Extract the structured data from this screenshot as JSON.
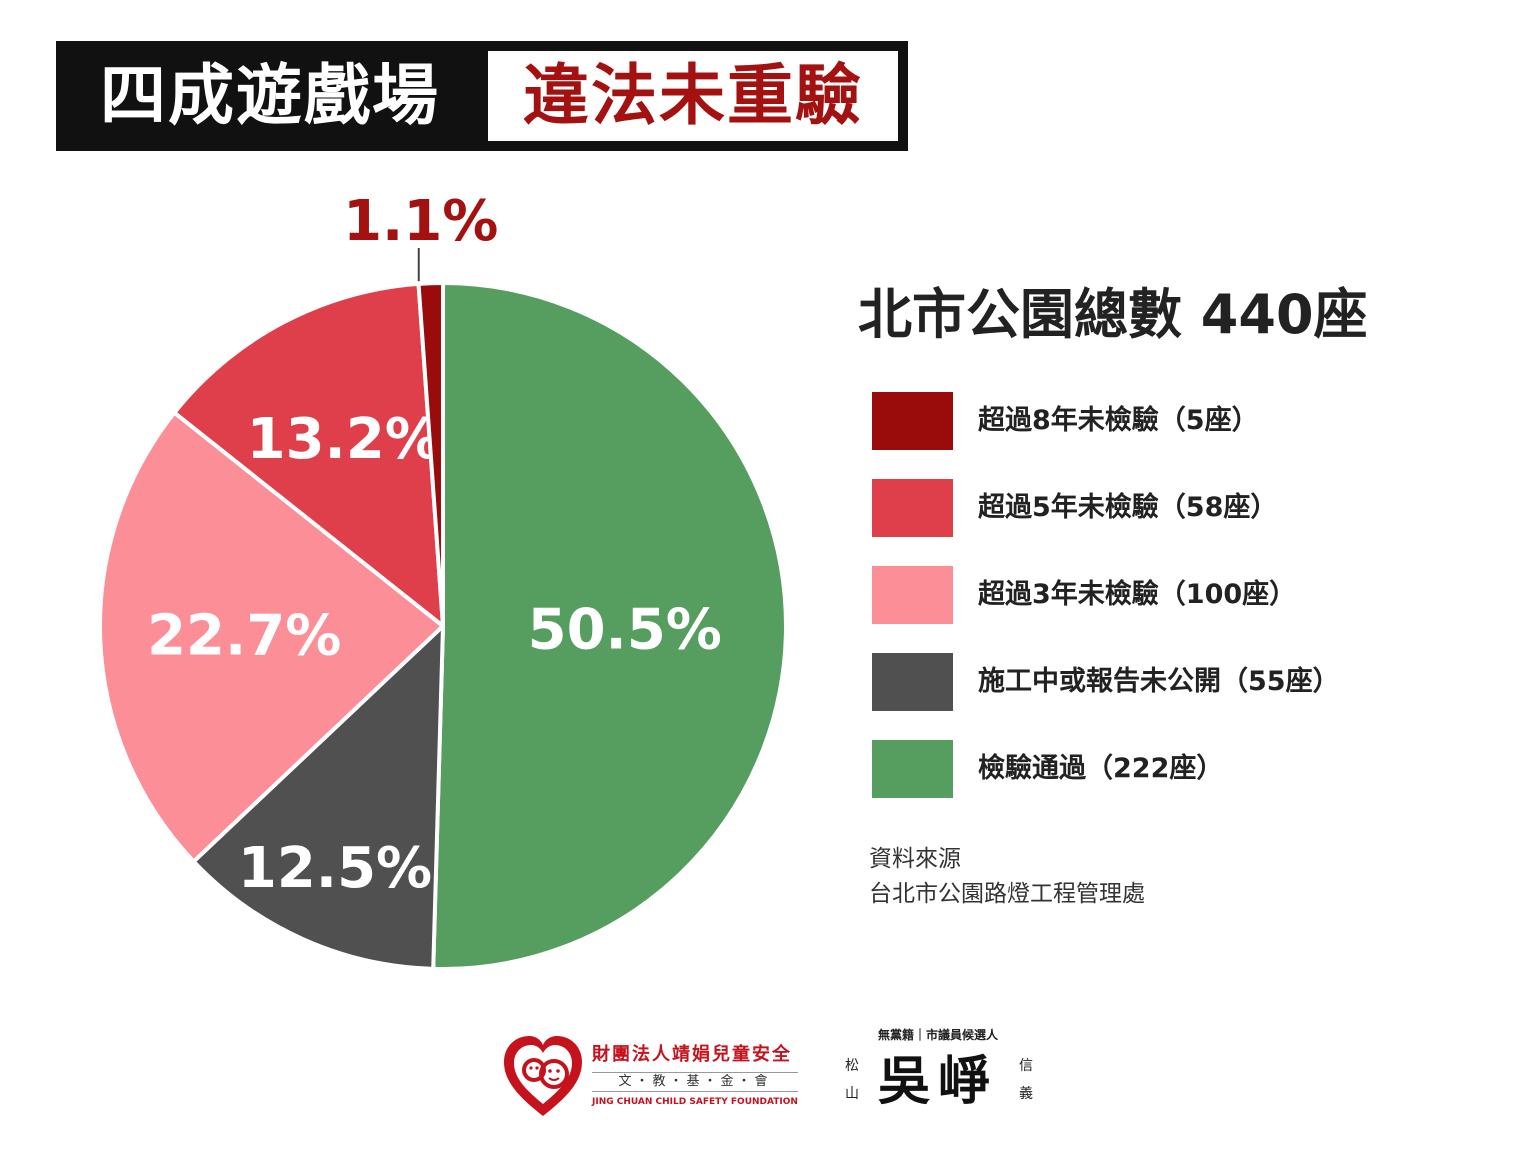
{
  "header": {
    "title_left": "四成遊戲場",
    "title_right": "違法未重驗"
  },
  "chart_data": {
    "type": "pie",
    "title": "北市公園總數 440座",
    "slices": [
      {
        "name": "檢驗通過（222座）",
        "value": 222,
        "percent_label": "50.5%",
        "color": "#559e5f",
        "label_color": "#ffffff"
      },
      {
        "name": "施工中或報告未公開（55座）",
        "value": 55,
        "percent_label": "12.5%",
        "color": "#505050",
        "label_color": "#ffffff"
      },
      {
        "name": "超過3年未檢驗（100座）",
        "value": 100,
        "percent_label": "22.7%",
        "color": "#fc8e97",
        "label_color": "#ffffff"
      },
      {
        "name": "超過5年未檢驗（58座）",
        "value": 58,
        "percent_label": "13.2%",
        "color": "#de3f4a",
        "label_color": "#ffffff"
      },
      {
        "name": "超過8年未檢驗（5座）",
        "value": 5,
        "percent_label": "1.1%",
        "color": "#9a0b0b",
        "label_color": "#a41111"
      }
    ],
    "legend_order": [
      "超過8年未檢驗（5座）",
      "超過5年未檢驗（58座）",
      "超過3年未檢驗（100座）",
      "施工中或報告未公開（55座）",
      "檢驗通過（222座）"
    ],
    "legend_placement": "right"
  },
  "legend": {
    "items": [
      {
        "label": "超過8年未檢驗（5座）",
        "color": "#9a0b0b"
      },
      {
        "label": "超過5年未檢驗（58座）",
        "color": "#de3f4a"
      },
      {
        "label": "超過3年未檢驗（100座）",
        "color": "#fc8e97"
      },
      {
        "label": "施工中或報告未公開（55座）",
        "color": "#505050"
      },
      {
        "label": "檢驗通過（222座）",
        "color": "#559e5f"
      }
    ]
  },
  "source": {
    "label": "資料來源",
    "text": "台北市公園路燈工程管理處"
  },
  "footer": {
    "foundation_name": "財團法人靖娟兒童安全",
    "foundation_sub": "文・教・基・金・會",
    "foundation_en": "JING CHUAN CHILD SAFETY FOUNDATION",
    "candidate_tagline": "無黨籍｜市議員候選人",
    "candidate_name": "吳崢",
    "district_left": "松山",
    "district_right": "信義"
  },
  "colors": {
    "accent_red": "#a41111",
    "logo_red": "#c6121d",
    "title_bg": "#111111"
  }
}
